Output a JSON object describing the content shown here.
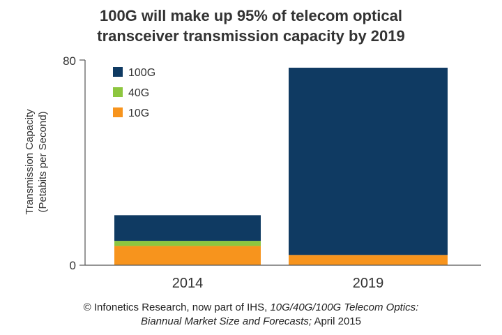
{
  "chart_data": {
    "type": "bar",
    "stacked": true,
    "title_lines": [
      "100G will make up 95% of telecom optical",
      "transceiver transmission capacity by 2019"
    ],
    "ylabel_lines": [
      "Transmission Capacity",
      "(Petabits per Second)"
    ],
    "xlabel": "",
    "ylim": [
      0,
      80
    ],
    "yticks": [
      "0",
      "80"
    ],
    "categories": [
      "2014",
      "2019"
    ],
    "series": [
      {
        "name": "10G",
        "color": "#f7941d",
        "values": [
          7.5,
          4
        ]
      },
      {
        "name": "40G",
        "color": "#8dc63f",
        "values": [
          2,
          0
        ]
      },
      {
        "name": "100G",
        "color": "#0f3a62",
        "values": [
          10,
          73
        ]
      }
    ],
    "legend": {
      "placement": "top-left",
      "order": [
        "100G",
        "40G",
        "10G"
      ]
    }
  },
  "source": {
    "prefix": "© Infonetics Research, now part of IHS, ",
    "italic1": "10G/40G/100G Telecom Optics:",
    "italic2": "Biannual Market Size and Forecasts;",
    "suffix": " April 2015"
  }
}
